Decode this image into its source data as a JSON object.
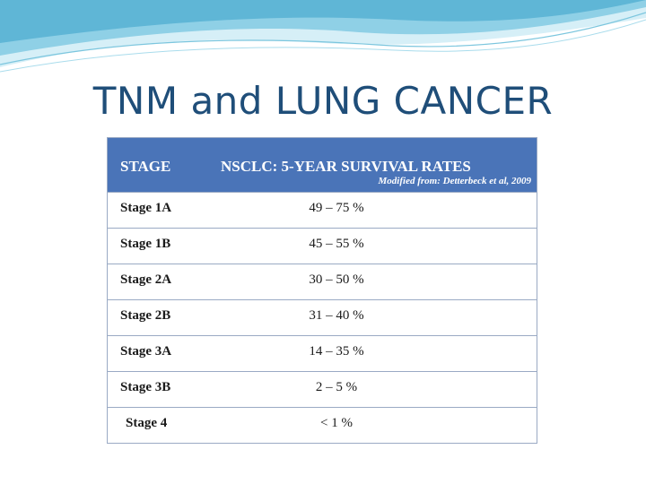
{
  "slide": {
    "title": "TNM and LUNG CANCER"
  },
  "table": {
    "header": {
      "stage": "STAGE",
      "rates": "NSCLC:  5-YEAR SURVIVAL RATES",
      "note": "Modified from: Detterbeck et al, 2009"
    },
    "rows": [
      {
        "stage": "Stage 1A",
        "rate": "49 – 75 %"
      },
      {
        "stage": "Stage 1B",
        "rate": "45 – 55 %"
      },
      {
        "stage": "Stage 2A",
        "rate": "30 – 50 %"
      },
      {
        "stage": "Stage 2B",
        "rate": "31 – 40 %"
      },
      {
        "stage": "Stage 3A",
        "rate": "14 – 35 %"
      },
      {
        "stage": "Stage 3B",
        "rate": "2 – 5 %"
      },
      {
        "stage": "Stage 4",
        "rate": "< 1 %"
      }
    ]
  },
  "colors": {
    "header_bg": "#4a74b8",
    "title": "#1f4e79",
    "wave_dark": "#5fb6d6",
    "wave_light": "#bfe6f2"
  }
}
